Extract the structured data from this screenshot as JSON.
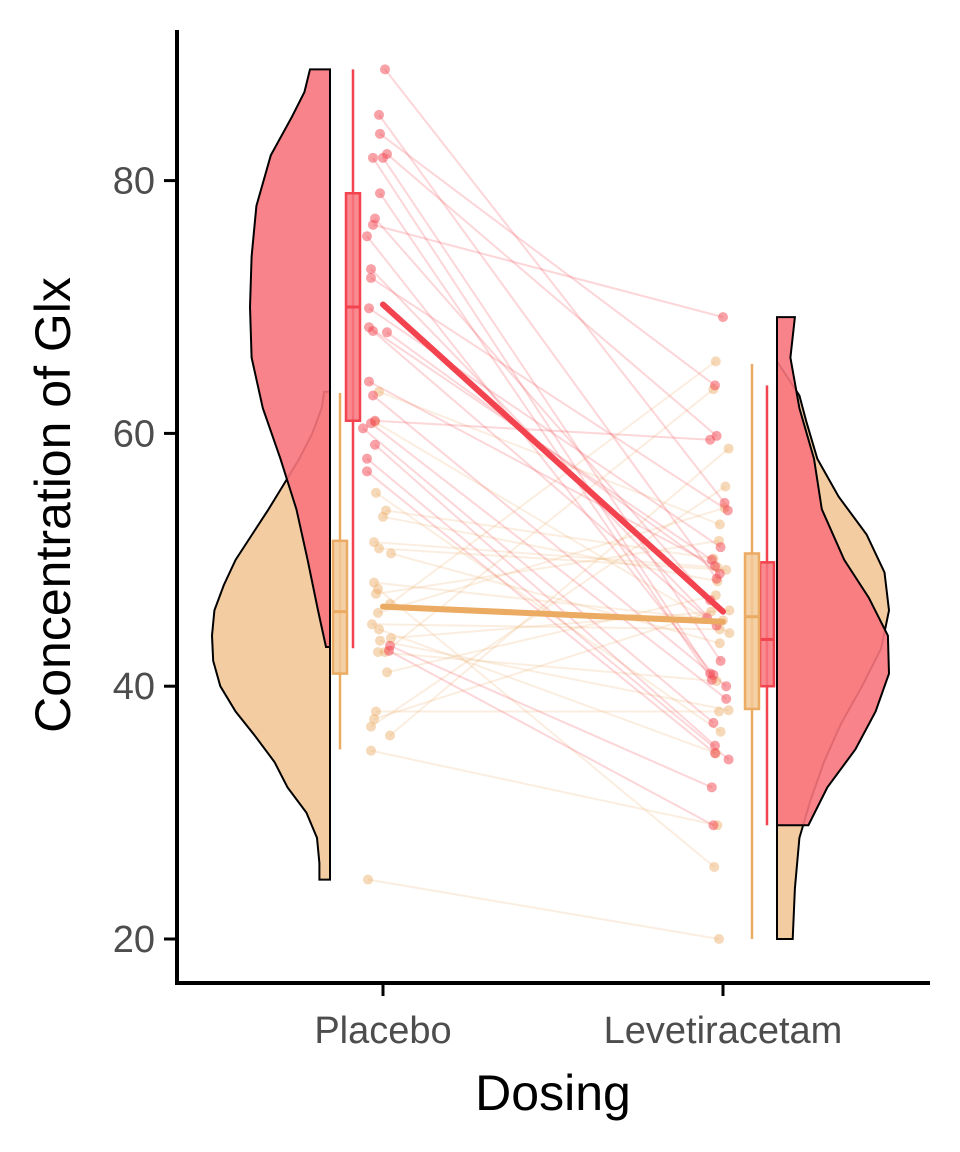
{
  "chart_data": {
    "type": "raincloud",
    "title": "",
    "xlabel": "Dosing",
    "ylabel": "Concentration of Glx",
    "categories": [
      "Placebo",
      "Levetiracetam"
    ],
    "ylim": [
      16.5,
      91
    ],
    "yticks": [
      20,
      40,
      60,
      80
    ],
    "grid": false,
    "legend": "none",
    "colors": {
      "red": "#f2434f",
      "red_fill": "#f8767d",
      "orange": "#ebab63",
      "orange_fill": "#f2c897"
    },
    "series": [
      {
        "color": "red",
        "mean": [
          70.2,
          45.9
        ],
        "box": [
          {
            "whisker_low": 43.0,
            "q1": 61.0,
            "median": 70.0,
            "q3": 79.0,
            "whisker_high": 88.8
          },
          {
            "whisker_low": 29.0,
            "q1": 40.0,
            "median": 43.7,
            "q3": 49.8,
            "whisker_high": 63.8
          }
        ],
        "violin_range": [
          [
            43.1,
            88.8
          ],
          [
            29.0,
            69.2
          ]
        ],
        "pairs": [
          [
            88.8,
            54.5
          ],
          [
            85.2,
            48.5
          ],
          [
            83.7,
            63.8
          ],
          [
            82.1,
            59.8
          ],
          [
            81.8,
            42.0
          ],
          [
            81.8,
            41.0
          ],
          [
            79.0,
            40.5
          ],
          [
            77.0,
            46.8
          ],
          [
            76.5,
            69.2
          ],
          [
            75.6,
            40.9
          ],
          [
            73.0,
            44.8
          ],
          [
            72.3,
            53.9
          ],
          [
            69.9,
            51.0
          ],
          [
            68.4,
            50.0
          ],
          [
            68.1,
            45.4
          ],
          [
            68.0,
            48.9
          ],
          [
            64.1,
            49.5
          ],
          [
            63.0,
            40.0
          ],
          [
            61.0,
            59.5
          ],
          [
            60.8,
            39.0
          ],
          [
            60.4,
            37.1
          ],
          [
            59.1,
            35.3
          ],
          [
            58.0,
            34.2
          ],
          [
            57.0,
            34.7
          ],
          [
            43.2,
            32.0
          ],
          [
            42.8,
            29.0
          ]
        ]
      },
      {
        "color": "orange",
        "mean": [
          46.3,
          45.1
        ],
        "box": [
          {
            "whisker_low": 35.0,
            "q1": 41.0,
            "median": 45.9,
            "q3": 51.5,
            "whisker_high": 63.2
          },
          {
            "whisker_low": 20.0,
            "q1": 38.2,
            "median": 45.5,
            "q3": 50.5,
            "whisker_high": 65.5
          }
        ],
        "violin_range": [
          [
            24.7,
            63.3
          ],
          [
            20.0,
            65.7
          ]
        ],
        "pairs": [
          [
            63.3,
            52.8
          ],
          [
            60.9,
            44.2
          ],
          [
            55.3,
            36.4
          ],
          [
            53.9,
            50.1
          ],
          [
            53.4,
            48.3
          ],
          [
            51.4,
            49.4
          ],
          [
            50.9,
            49.2
          ],
          [
            50.5,
            43.4
          ],
          [
            48.2,
            45.2
          ],
          [
            47.3,
            51.5
          ],
          [
            46.5,
            65.7
          ],
          [
            45.8,
            54.1
          ],
          [
            44.9,
            44.5
          ],
          [
            43.8,
            46.0
          ],
          [
            43.6,
            38.1
          ],
          [
            42.7,
            40.4
          ],
          [
            41.1,
            47.2
          ],
          [
            38.0,
            38.0
          ],
          [
            37.4,
            45.9
          ],
          [
            36.8,
            55.8
          ],
          [
            36.1,
            58.8
          ],
          [
            34.9,
            29.0
          ],
          [
            24.7,
            20.0
          ],
          [
            44.5,
            34.7
          ],
          [
            47.7,
            25.7
          ],
          [
            42.7,
            63.5
          ]
        ]
      }
    ]
  }
}
